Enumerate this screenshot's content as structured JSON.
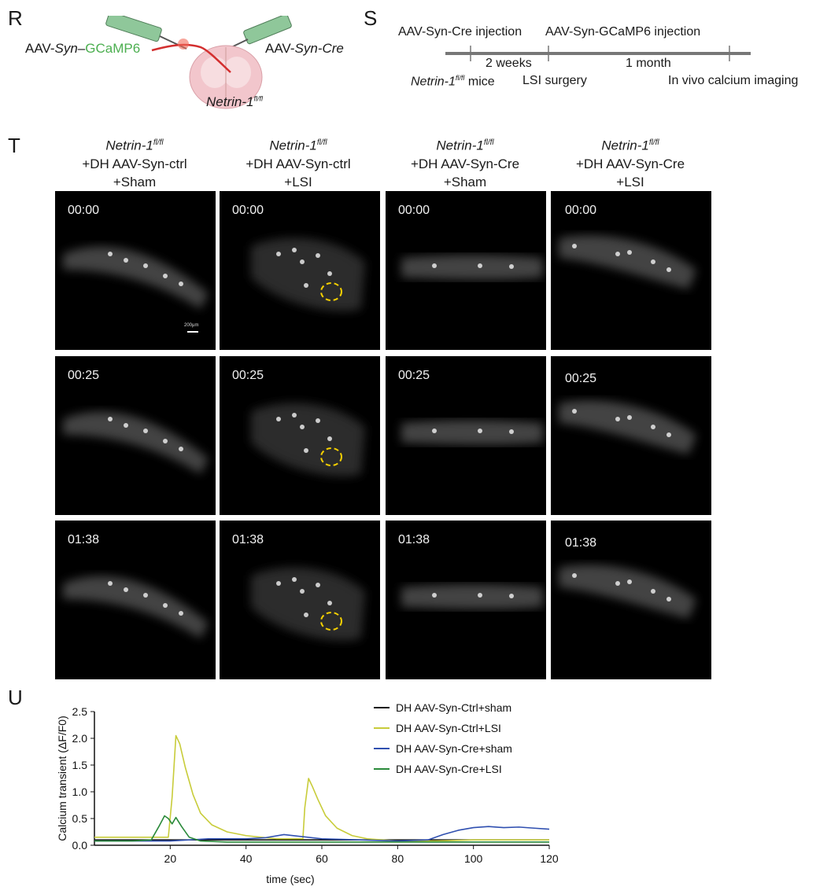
{
  "panels": {
    "r": "R",
    "s": "S",
    "t": "T",
    "u": "U"
  },
  "panel_r": {
    "left_virus_prefix": "AAV-",
    "left_virus_promoter": "Syn",
    "left_virus_dash": "–",
    "left_virus_gene": "GCaMP6",
    "right_virus_prefix": "AAV-",
    "right_virus_promoter": "Syn-Cre",
    "mouse_gene": "Netrin-1",
    "mouse_allele": "fl/fl",
    "colors": {
      "gcamp_text": "#4caf50",
      "syringe": "#8fc79a",
      "cord": "#f2c6cc",
      "axon": "#d32f2f"
    }
  },
  "panel_s": {
    "event1_top": "AAV-Syn-Cre injection",
    "event2_top": "AAV-Syn-GCaMP6 injection",
    "interval1": "2 weeks",
    "interval2": "1 month",
    "start_gene": "Netrin-1",
    "start_allele": "fl/fl",
    "start_suffix": " mice",
    "event2_bottom": "LSI surgery",
    "end_bottom": "In vivo calcium imaging"
  },
  "panel_t": {
    "columns": [
      {
        "gene": "Netrin-1",
        "allele": "fl/fl",
        "line2": "+DH AAV-Syn-ctrl",
        "line3": "+Sham"
      },
      {
        "gene": "Netrin-1",
        "allele": "fl/fl",
        "line2": "+DH AAV-Syn-ctrl",
        "line3": "+LSI"
      },
      {
        "gene": "Netrin-1",
        "allele": "fl/fl",
        "line2": "+DH AAV-Syn-Cre",
        "line3": "+Sham"
      },
      {
        "gene": "Netrin-1",
        "allele": "fl/fl",
        "line2": "+DH AAV-Syn-Cre",
        "line3": "+LSI"
      }
    ],
    "timestamps": [
      "00:00",
      "00:25",
      "01:38"
    ],
    "scale_bar_label": "200μm",
    "roi_color": "#f5d000"
  },
  "chart_data": {
    "type": "line",
    "ylabel": "Calcium transient (ΔF/F0)",
    "xlabel": "time (sec)",
    "xlim": [
      0,
      120
    ],
    "ylim": [
      0,
      2.5
    ],
    "xticks": [
      "20",
      "40",
      "60",
      "80",
      "100",
      "120"
    ],
    "yticks": [
      "0.0",
      "0.5",
      "1.0",
      "1.5",
      "2.0",
      "2.5"
    ],
    "legend_position": "top-right",
    "series": [
      {
        "name": "DH AAV-Syn-Ctrl+sham",
        "color": "#111111",
        "x": [
          0,
          10,
          20,
          30,
          40,
          50,
          60,
          70,
          80,
          90,
          100,
          110,
          120
        ],
        "y": [
          0.1,
          0.1,
          0.1,
          0.1,
          0.1,
          0.1,
          0.1,
          0.1,
          0.1,
          0.1,
          0.1,
          0.1,
          0.1
        ]
      },
      {
        "name": "DH AAV-Syn-Ctrl+LSI",
        "color": "#c8cc3a",
        "x": [
          0,
          10,
          19.5,
          20.5,
          21.5,
          22.5,
          24,
          26,
          28,
          31,
          35,
          40,
          48,
          55,
          55.5,
          56.5,
          57.5,
          59,
          61,
          64,
          68,
          72,
          80,
          90,
          100,
          110,
          120
        ],
        "y": [
          0.15,
          0.15,
          0.15,
          0.9,
          2.05,
          1.9,
          1.45,
          0.95,
          0.6,
          0.38,
          0.25,
          0.18,
          0.12,
          0.12,
          0.7,
          1.25,
          1.1,
          0.85,
          0.55,
          0.32,
          0.18,
          0.12,
          0.08,
          0.08,
          0.1,
          0.1,
          0.1
        ]
      },
      {
        "name": "DH AAV-Syn-Cre+sham",
        "color": "#2f4fb0",
        "x": [
          0,
          10,
          20,
          30,
          40,
          45,
          50,
          60,
          70,
          80,
          88,
          92,
          96,
          100,
          104,
          108,
          112,
          116,
          120
        ],
        "y": [
          0.08,
          0.08,
          0.08,
          0.12,
          0.12,
          0.14,
          0.2,
          0.12,
          0.1,
          0.08,
          0.1,
          0.2,
          0.28,
          0.33,
          0.35,
          0.33,
          0.34,
          0.32,
          0.3
        ]
      },
      {
        "name": "DH AAV-Syn-Cre+LSI",
        "color": "#2a8a3a",
        "x": [
          0,
          10,
          15,
          17,
          18.5,
          19.5,
          20.5,
          21.5,
          23,
          25,
          28,
          35,
          50,
          70,
          90,
          110,
          120
        ],
        "y": [
          0.08,
          0.08,
          0.1,
          0.35,
          0.55,
          0.5,
          0.4,
          0.52,
          0.35,
          0.15,
          0.08,
          0.06,
          0.06,
          0.06,
          0.06,
          0.06,
          0.06
        ]
      }
    ]
  }
}
